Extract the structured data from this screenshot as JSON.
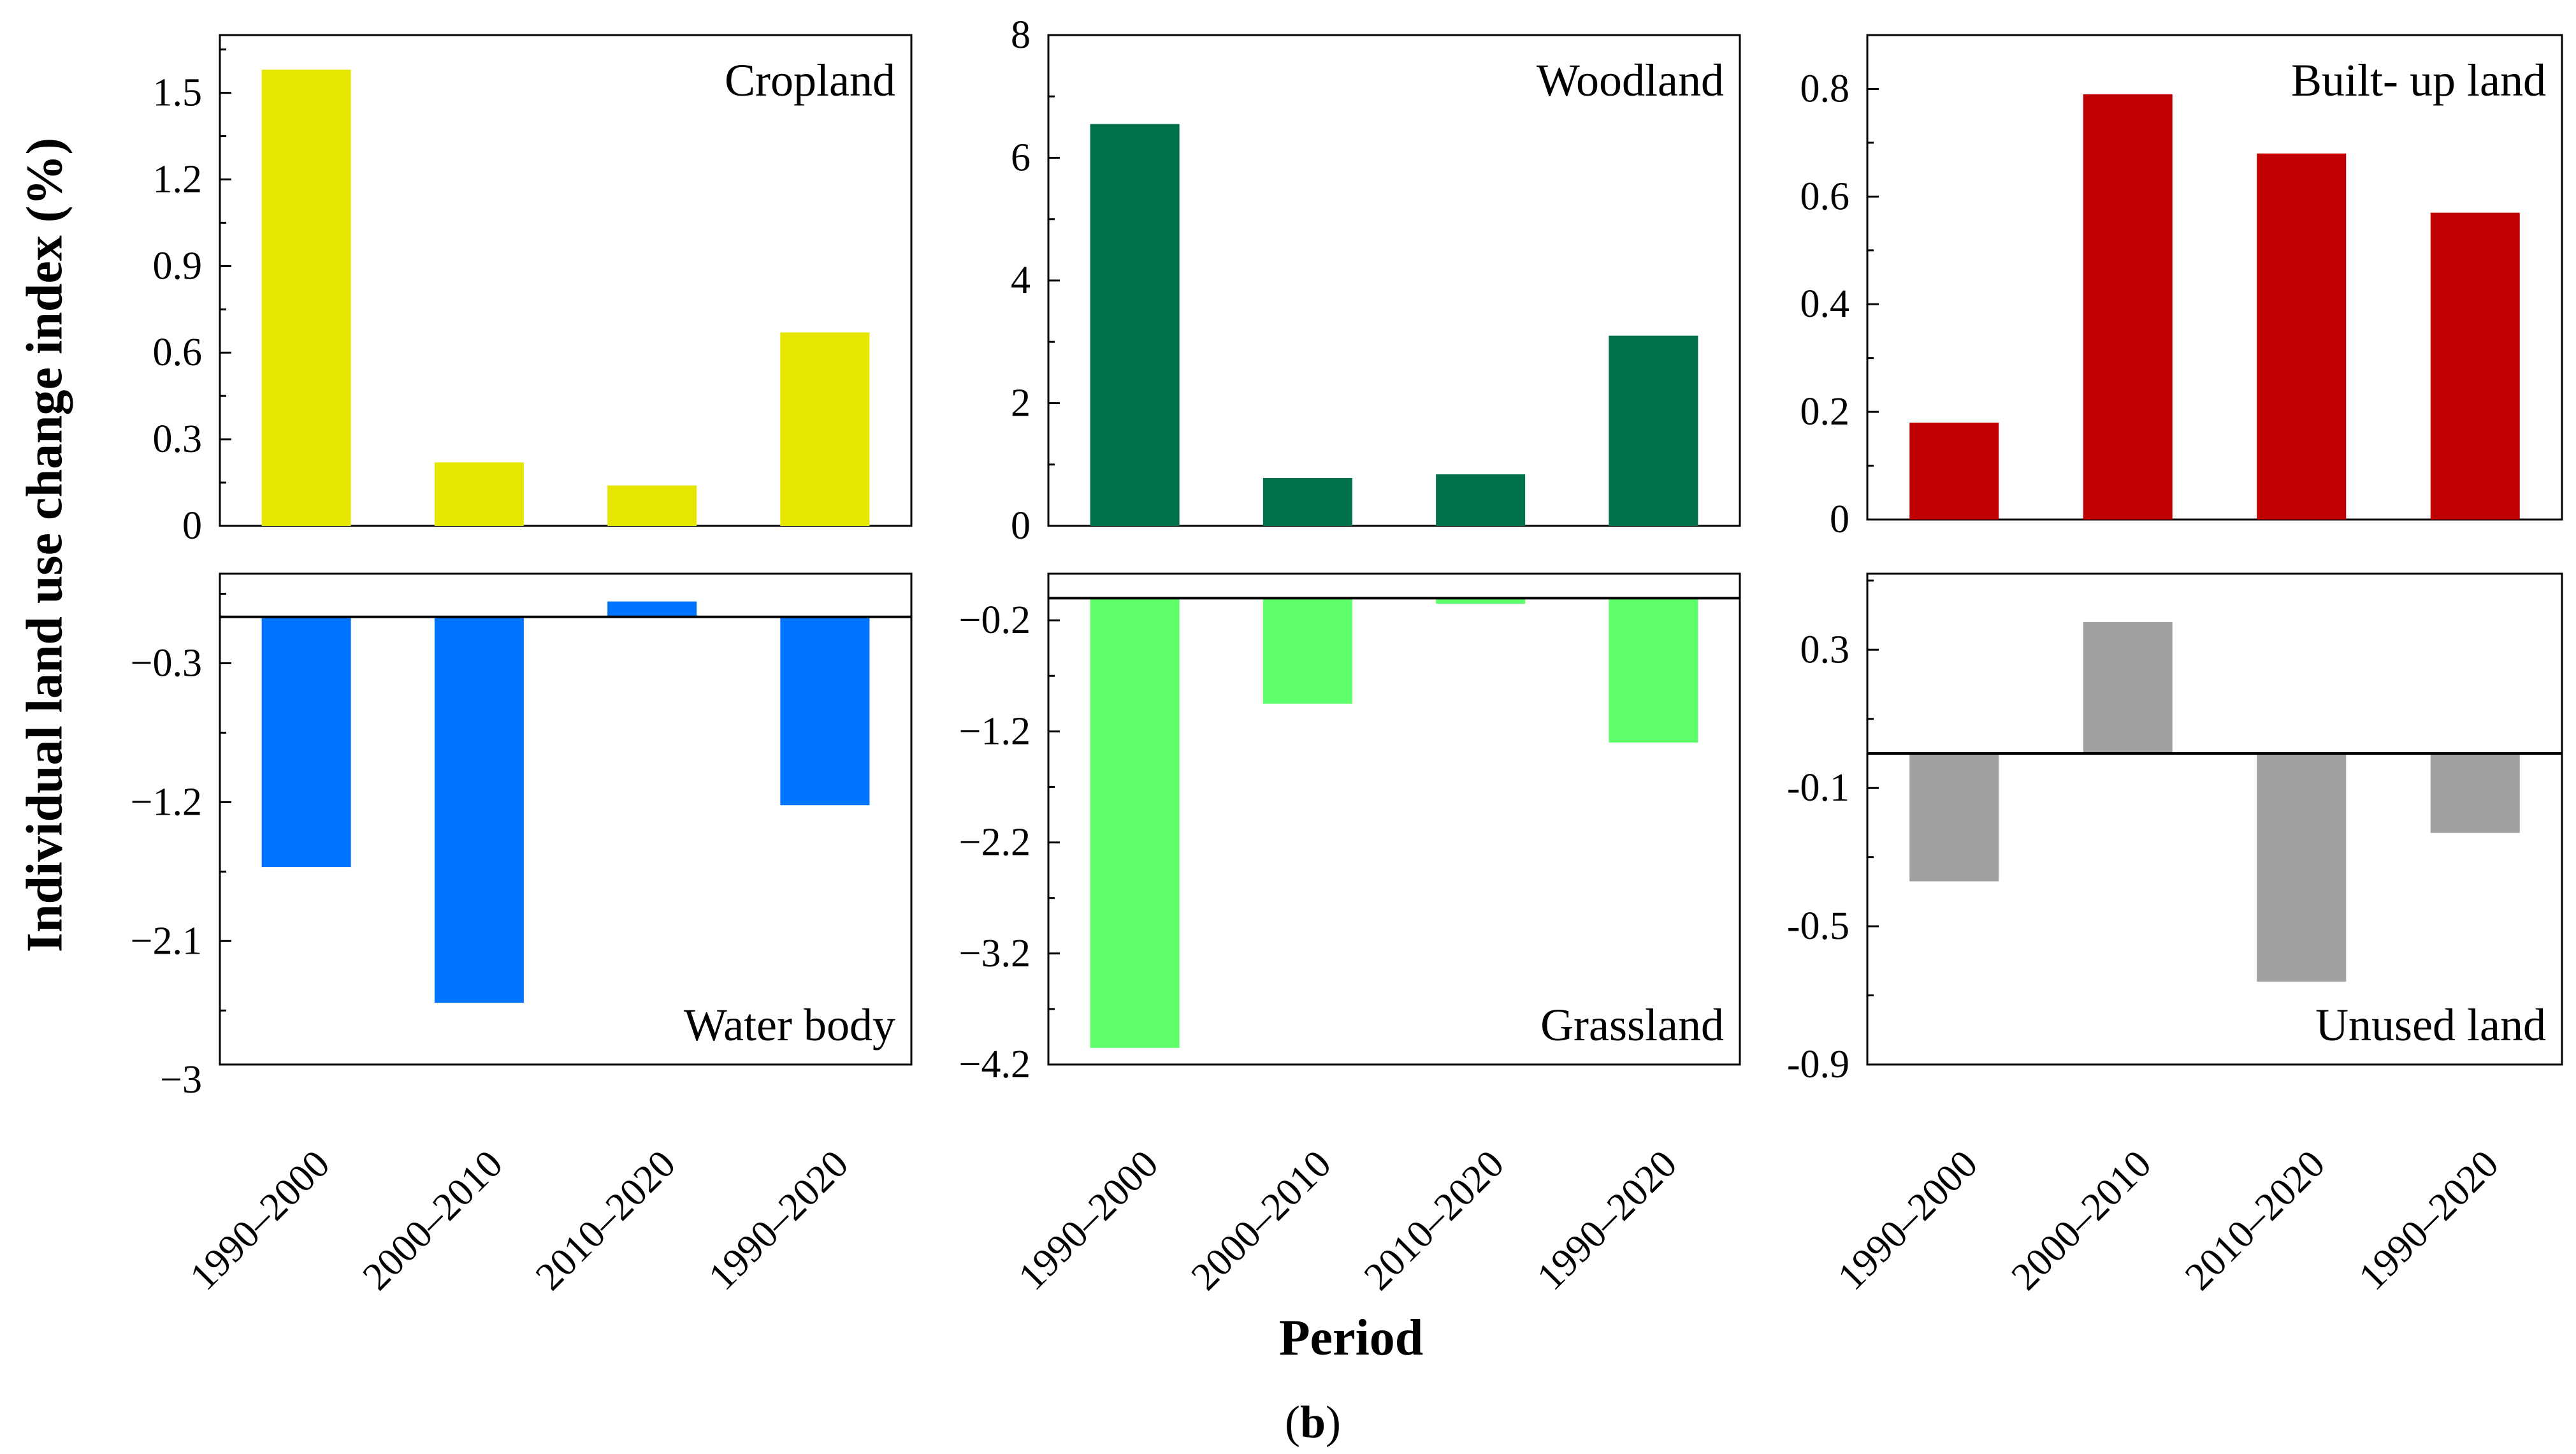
{
  "figure": {
    "y_axis_title": "Individual land use change index (%)",
    "x_axis_title": "Period",
    "sub_label_open": "(",
    "sub_label_letter": "b",
    "sub_label_close": ")"
  },
  "chart_data": [
    {
      "type": "bar",
      "title": "Cropland",
      "categories": [
        "1990–2000",
        "2000–2010",
        "2010–2020",
        "1990–2020"
      ],
      "values": [
        1.58,
        0.22,
        0.14,
        0.67
      ],
      "ylim": [
        0,
        1.7
      ],
      "ticks": [
        0,
        0.3,
        0.6,
        0.9,
        1.2,
        1.5
      ],
      "tick_labels": [
        "0",
        "0.3",
        "0.6",
        "0.9",
        "1.2",
        "1.5"
      ],
      "color": "#e6e600",
      "xlabel": "Period",
      "ylabel": "Individual land use change index (%)"
    },
    {
      "type": "bar",
      "title": "Woodland",
      "categories": [
        "1990–2000",
        "2000–2010",
        "2010–2020",
        "1990–2020"
      ],
      "values": [
        6.55,
        0.78,
        0.84,
        3.1
      ],
      "ylim": [
        0,
        8
      ],
      "ticks": [
        0,
        2,
        4,
        6,
        8
      ],
      "tick_labels": [
        "0",
        "2",
        "4",
        "6",
        "8"
      ],
      "color": "#00704a",
      "xlabel": "Period",
      "ylabel": ""
    },
    {
      "type": "bar",
      "title": "Built- up land",
      "categories": [
        "1990–2000",
        "2000–2010",
        "2010–2020",
        "1990–2020"
      ],
      "values": [
        0.18,
        0.79,
        0.68,
        0.57
      ],
      "ylim": [
        0,
        0.9
      ],
      "ticks": [
        0,
        0.2,
        0.4,
        0.6,
        0.8
      ],
      "tick_labels": [
        "0",
        "0.2",
        "0.4",
        "0.6",
        "0.8"
      ],
      "color": "#c00000",
      "xlabel": "Period",
      "ylabel": ""
    },
    {
      "type": "bar",
      "title": "Water body",
      "categories": [
        "1990–2000",
        "2000–2010",
        "2010–2020",
        "1990–2020"
      ],
      "values": [
        -1.62,
        -2.5,
        0.1,
        -1.22
      ],
      "ylim": [
        -2.9,
        0.28
      ],
      "ticks": [
        -3,
        -2.1,
        -1.2,
        -0.3
      ],
      "tick_labels": [
        "−3",
        "−2.1",
        "−1.2",
        "−0.3"
      ],
      "color": "#0073ff",
      "xlabel": "Period",
      "ylabel": "Individual land use change index (%)"
    },
    {
      "type": "bar",
      "title": "Grassland",
      "categories": [
        "1990–2000",
        "2000–2010",
        "2010–2020",
        "1990–2020"
      ],
      "values": [
        -4.05,
        -0.95,
        -0.05,
        -1.3
      ],
      "ylim": [
        -4.2,
        0.22
      ],
      "ticks": [
        -4.2,
        -3.2,
        -2.2,
        -1.2,
        -0.2
      ],
      "tick_labels": [
        "−4.2",
        "−3.2",
        "−2.2",
        "−1.2",
        "−0.2"
      ],
      "color": "#5eff6a",
      "xlabel": "Period",
      "ylabel": ""
    },
    {
      "type": "bar",
      "title": "Unused land",
      "categories": [
        "1990–2000",
        "2000–2010",
        "2010–2020",
        "1990–2020"
      ],
      "values": [
        -0.37,
        0.38,
        -0.66,
        -0.23
      ],
      "ylim": [
        -0.9,
        0.52
      ],
      "ticks": [
        -0.9,
        -0.5,
        -0.1,
        0.3
      ],
      "tick_labels": [
        "-0.9",
        "-0.5",
        "-0.1",
        "0.3"
      ],
      "color": "#a0a0a0",
      "xlabel": "Period",
      "ylabel": ""
    }
  ]
}
